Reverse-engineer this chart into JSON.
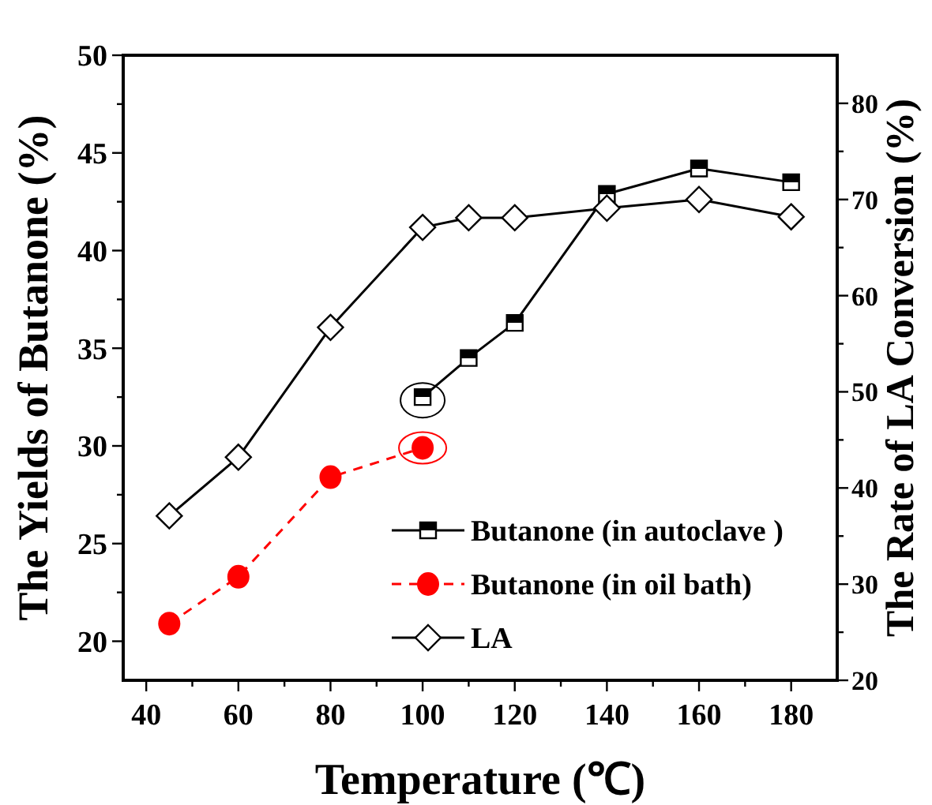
{
  "chart_data": {
    "type": "line",
    "xlabel": "Temperature (℃)",
    "ylabel": "The Yields of Butanone (%)",
    "y2label": "The Rate of LA Conversion (%)",
    "xlim": [
      35,
      190
    ],
    "xticks": [
      40,
      {
        "value": 50,
        "label": null
      },
      60,
      {
        "value": 70,
        "label": null
      },
      80,
      {
        "value": 90,
        "label": null
      },
      100,
      {
        "value": 110,
        "label": null
      },
      120,
      {
        "value": 130,
        "label": null
      },
      140,
      {
        "value": 150,
        "label": null
      },
      160,
      {
        "value": 170,
        "label": null
      },
      180
    ],
    "ylim": [
      18,
      50
    ],
    "yticks": [
      20,
      {
        "value": 22.5,
        "label": null
      },
      25,
      {
        "value": 27.5,
        "label": null
      },
      30,
      {
        "value": 32.5,
        "label": null
      },
      35,
      {
        "value": 37.5,
        "label": null
      },
      40,
      {
        "value": 42.5,
        "label": null
      },
      45,
      {
        "value": 47.5,
        "label": null
      },
      50
    ],
    "y2lim": [
      20,
      85
    ],
    "y2ticks": [
      20,
      {
        "value": 25,
        "label": null
      },
      30,
      {
        "value": 35,
        "label": null
      },
      40,
      {
        "value": 45,
        "label": null
      },
      50,
      {
        "value": 55,
        "label": null
      },
      60,
      {
        "value": 65,
        "label": null
      },
      70,
      {
        "value": 75,
        "label": null
      },
      80
    ],
    "legend": "bottom right",
    "grid": false,
    "series": [
      {
        "name": "Butanone (in autoclave )",
        "color": "#000000",
        "marker": "square",
        "line_style": "solid",
        "x": [
          100,
          110,
          120,
          140,
          160,
          180
        ],
        "values": [
          32.5,
          34.5,
          36.3,
          42.9,
          44.2,
          43.5
        ]
      },
      {
        "name": "Butanone (in oil bath)",
        "color": "#ff0000",
        "marker": "circle",
        "line_style": "dashed",
        "x": [
          45,
          60,
          80,
          100
        ],
        "values": [
          20.9,
          23.3,
          28.4,
          29.9
        ]
      },
      {
        "name": "LA",
        "color": "#000000",
        "marker": "diamond",
        "line_style": "solid",
        "axis": "y2",
        "x": [
          45,
          60,
          80,
          100,
          110,
          120,
          140,
          160,
          180
        ],
        "values": [
          37.1,
          43.2,
          56.7,
          67.1,
          68.1,
          68.1,
          69.1,
          70.0,
          68.2
        ]
      }
    ]
  }
}
